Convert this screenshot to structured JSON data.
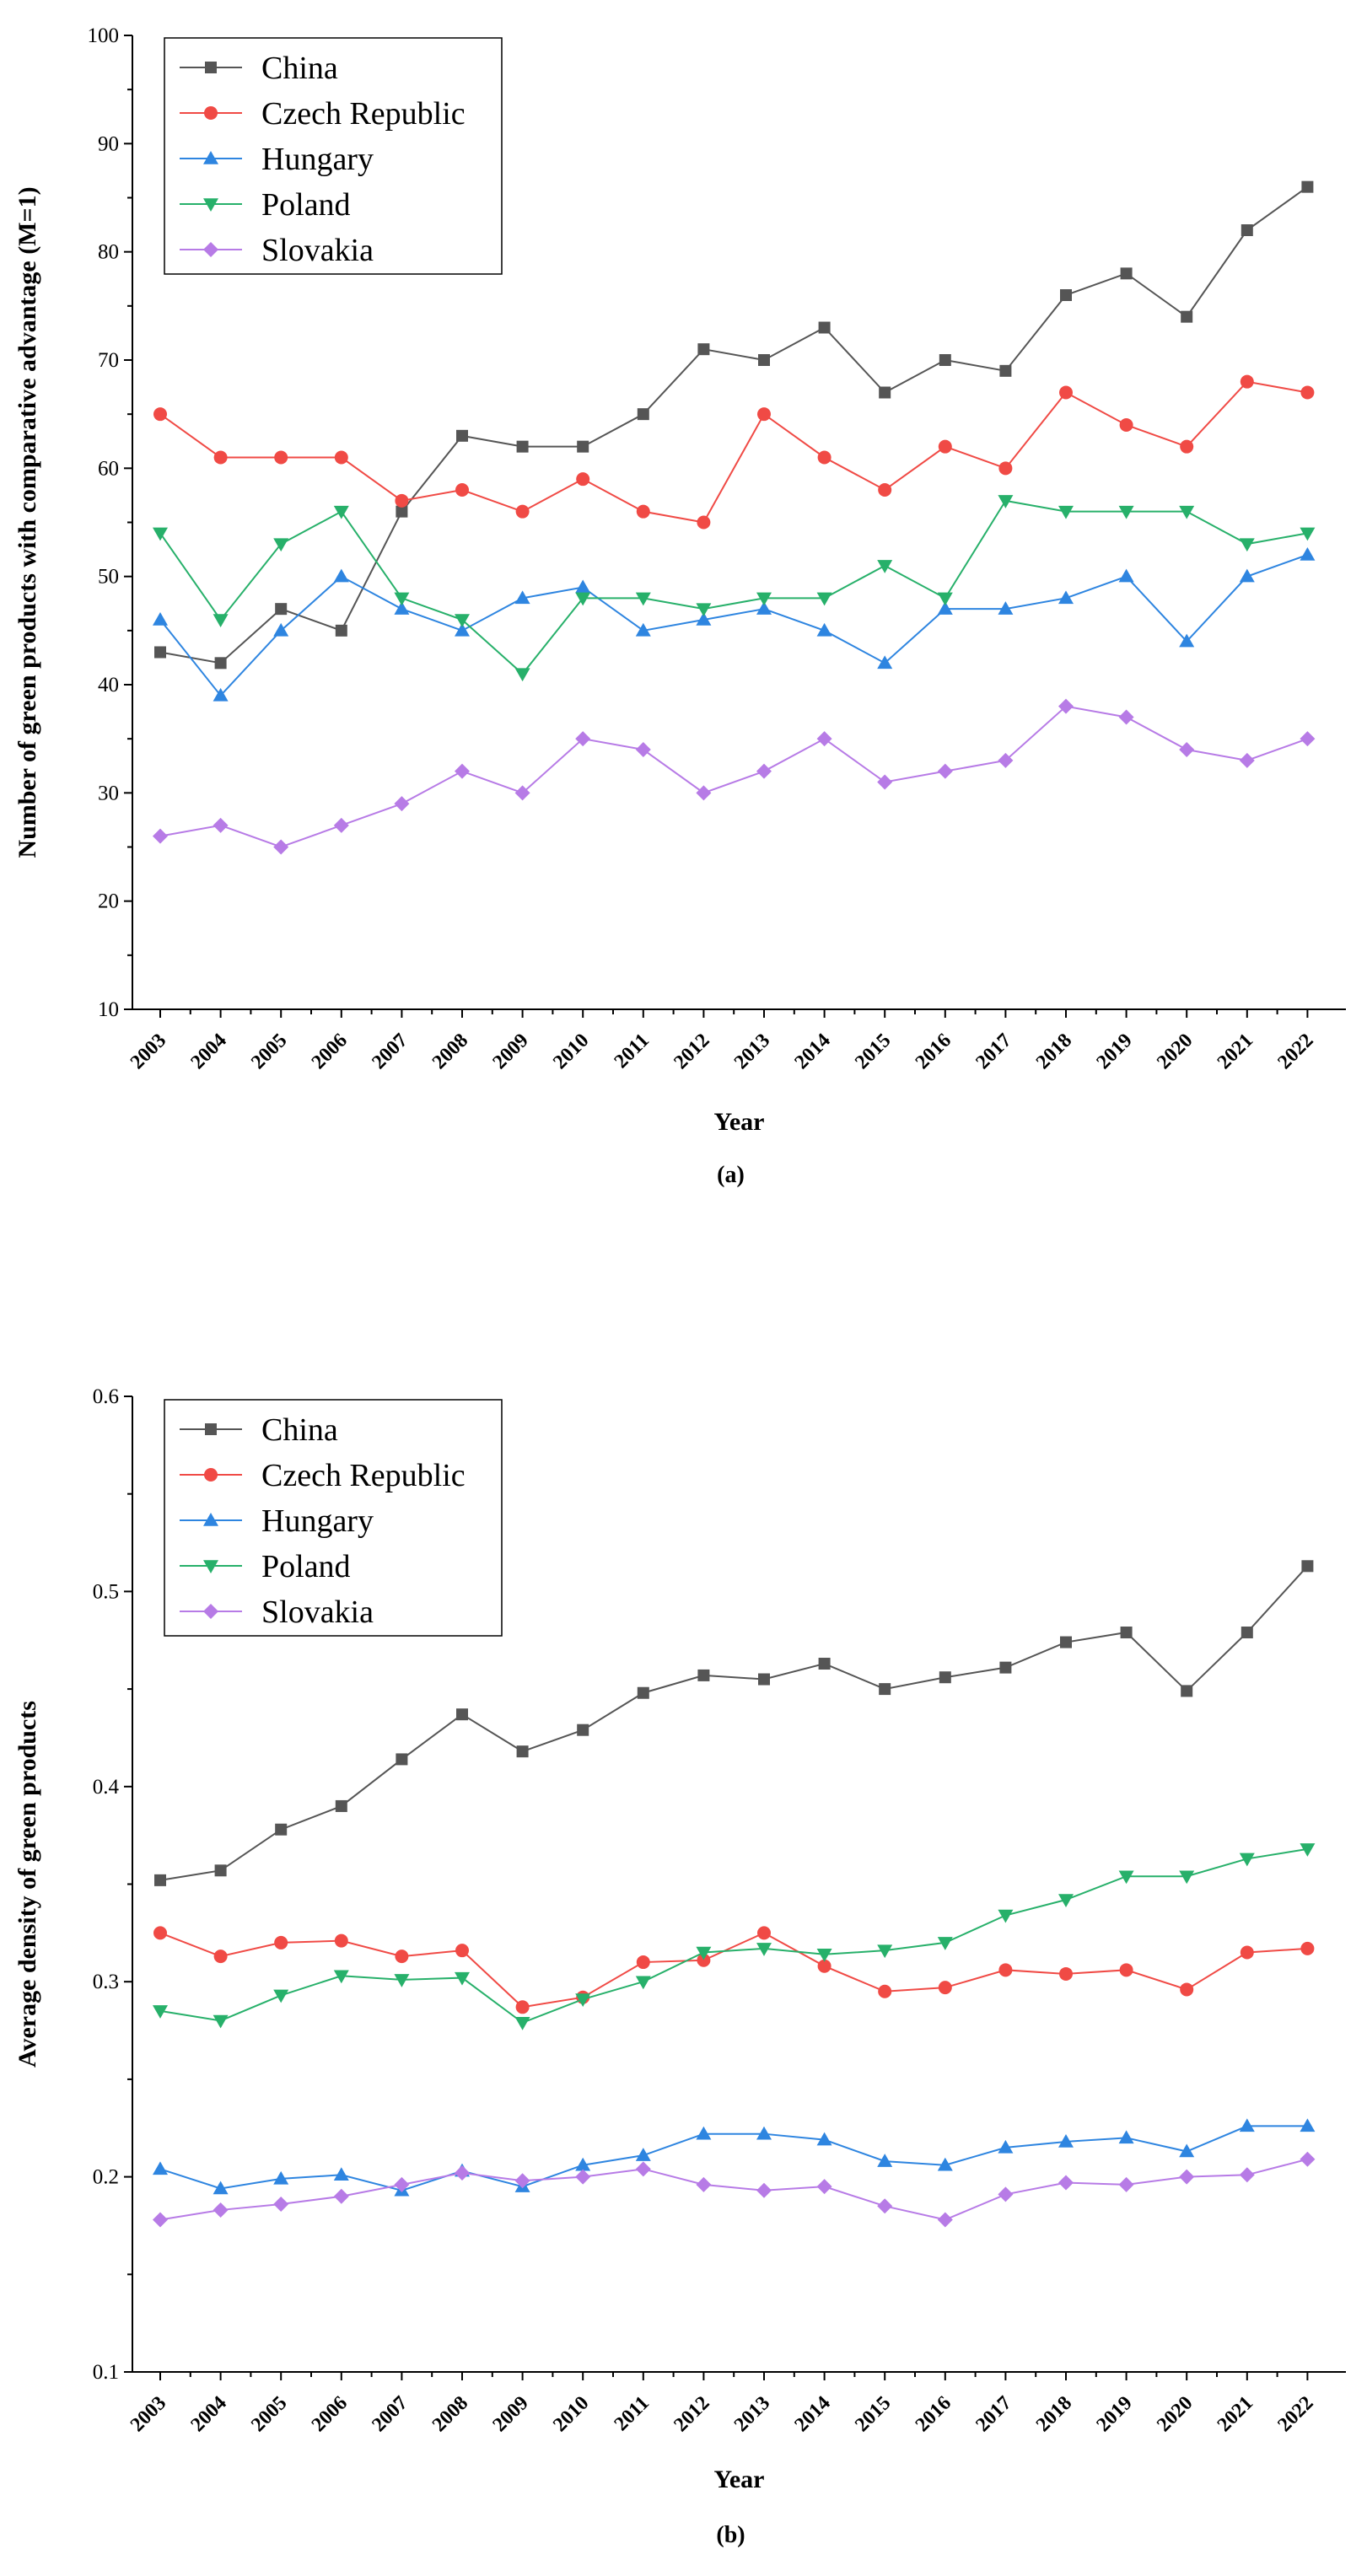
{
  "colors": {
    "China": "#555555",
    "Czech Republic": "#f04a45",
    "Hungary": "#2e85e0",
    "Poland": "#27b06a",
    "Slovakia": "#b77be6"
  },
  "chart_data": [
    {
      "type": "line",
      "panel_label": "(a)",
      "title": "",
      "xlabel": "Year",
      "ylabel": "Number of green products with comparative advantage (M=1)",
      "ylim": [
        10,
        100
      ],
      "yticks": [
        "10",
        "20",
        "30",
        "40",
        "50",
        "60",
        "70",
        "80",
        "90",
        "100"
      ],
      "categories": [
        "2003",
        "2004",
        "2005",
        "2006",
        "2007",
        "2008",
        "2009",
        "2010",
        "2011",
        "2012",
        "2013",
        "2014",
        "2015",
        "2016",
        "2017",
        "2018",
        "2019",
        "2020",
        "2021",
        "2022"
      ],
      "legend_position": "top-left",
      "series": [
        {
          "name": "China",
          "marker": "square",
          "values": [
            43,
            42,
            47,
            45,
            56,
            63,
            62,
            62,
            65,
            71,
            70,
            73,
            67,
            70,
            69,
            76,
            78,
            74,
            82,
            86
          ]
        },
        {
          "name": "Czech Republic",
          "marker": "circle",
          "values": [
            65,
            61,
            61,
            61,
            57,
            58,
            56,
            59,
            56,
            55,
            65,
            61,
            58,
            62,
            60,
            67,
            64,
            62,
            68,
            67
          ]
        },
        {
          "name": "Hungary",
          "marker": "triangle-up",
          "values": [
            46,
            39,
            45,
            50,
            47,
            45,
            48,
            49,
            45,
            46,
            47,
            45,
            42,
            47,
            47,
            48,
            50,
            44,
            50,
            52
          ]
        },
        {
          "name": "Poland",
          "marker": "triangle-down",
          "values": [
            54,
            46,
            53,
            56,
            48,
            46,
            41,
            48,
            48,
            47,
            48,
            48,
            51,
            48,
            57,
            56,
            56,
            56,
            53,
            54
          ]
        },
        {
          "name": "Slovakia",
          "marker": "diamond",
          "values": [
            26,
            27,
            25,
            27,
            29,
            32,
            30,
            35,
            34,
            30,
            32,
            35,
            31,
            32,
            33,
            38,
            37,
            34,
            33,
            35
          ]
        }
      ]
    },
    {
      "type": "line",
      "panel_label": "(b)",
      "title": "",
      "xlabel": "Year",
      "ylabel": "Average density of green products",
      "ylim": [
        0.1,
        0.6
      ],
      "yticks": [
        "0.1",
        "0.2",
        "0.3",
        "0.4",
        "0.5",
        "0.6"
      ],
      "categories": [
        "2003",
        "2004",
        "2005",
        "2006",
        "2007",
        "2008",
        "2009",
        "2010",
        "2011",
        "2012",
        "2013",
        "2014",
        "2015",
        "2016",
        "2017",
        "2018",
        "2019",
        "2020",
        "2021",
        "2022"
      ],
      "legend_position": "top-left",
      "series": [
        {
          "name": "China",
          "marker": "square",
          "values": [
            0.352,
            0.357,
            0.378,
            0.39,
            0.414,
            0.437,
            0.418,
            0.429,
            0.448,
            0.457,
            0.455,
            0.463,
            0.45,
            0.456,
            0.461,
            0.474,
            0.479,
            0.449,
            0.479,
            0.513
          ]
        },
        {
          "name": "Czech Republic",
          "marker": "circle",
          "values": [
            0.325,
            0.313,
            0.32,
            0.321,
            0.313,
            0.316,
            0.287,
            0.292,
            0.31,
            0.311,
            0.325,
            0.308,
            0.295,
            0.297,
            0.306,
            0.304,
            0.306,
            0.296,
            0.315,
            0.317
          ]
        },
        {
          "name": "Hungary",
          "marker": "triangle-up",
          "values": [
            0.204,
            0.194,
            0.199,
            0.201,
            0.193,
            0.203,
            0.195,
            0.206,
            0.211,
            0.222,
            0.222,
            0.219,
            0.208,
            0.206,
            0.215,
            0.218,
            0.22,
            0.213,
            0.226,
            0.226
          ]
        },
        {
          "name": "Poland",
          "marker": "triangle-down",
          "values": [
            0.285,
            0.28,
            0.293,
            0.303,
            0.301,
            0.302,
            0.279,
            0.291,
            0.3,
            0.315,
            0.317,
            0.314,
            0.316,
            0.32,
            0.334,
            0.342,
            0.354,
            0.354,
            0.363,
            0.368
          ]
        },
        {
          "name": "Slovakia",
          "marker": "diamond",
          "values": [
            0.178,
            0.183,
            0.186,
            0.19,
            0.196,
            0.202,
            0.198,
            0.2,
            0.204,
            0.196,
            0.193,
            0.195,
            0.185,
            0.178,
            0.191,
            0.197,
            0.196,
            0.2,
            0.201,
            0.209
          ]
        }
      ]
    }
  ]
}
